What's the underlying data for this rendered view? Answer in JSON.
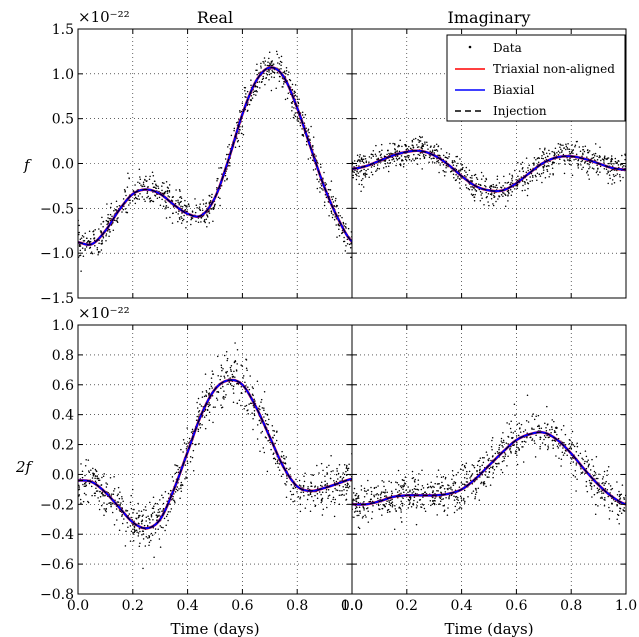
{
  "column_titles": [
    "Real",
    "Imaginary"
  ],
  "row_labels": [
    "f",
    "2f"
  ],
  "sci_notation": [
    "×10⁻²²",
    "×10⁻²²"
  ],
  "xlabel": "Time (days)",
  "legend": {
    "placement": "top-right of Imaginary (f) panel",
    "entries": [
      {
        "label": "Data",
        "style": "dots",
        "color": "#000000"
      },
      {
        "label": "Triaxial non-aligned",
        "style": "line",
        "color": "#ff0000"
      },
      {
        "label": "Biaxial",
        "style": "line",
        "color": "#0000ff"
      },
      {
        "label": "Injection",
        "style": "dashed",
        "color": "#000000"
      }
    ]
  },
  "chart_data": [
    {
      "type": "line",
      "panel": "f-real",
      "xlim": [
        0,
        1
      ],
      "ylim": [
        -1.5,
        1.5
      ],
      "xticks": [
        "0.0",
        "0.2",
        "0.4",
        "0.6",
        "0.8",
        "1.0"
      ],
      "yticks": [
        "−1.5",
        "−1.0",
        "−0.5",
        "0.0",
        "0.5",
        "1.0",
        "1.5"
      ],
      "grid": true,
      "x": [
        0.0,
        0.05,
        0.1,
        0.15,
        0.2,
        0.25,
        0.3,
        0.35,
        0.4,
        0.45,
        0.5,
        0.55,
        0.6,
        0.65,
        0.7,
        0.75,
        0.8,
        0.85,
        0.9,
        0.95,
        1.0
      ],
      "y": [
        -0.88,
        -0.9,
        -0.75,
        -0.52,
        -0.34,
        -0.29,
        -0.34,
        -0.46,
        -0.56,
        -0.58,
        -0.38,
        0.05,
        0.55,
        0.92,
        1.07,
        0.97,
        0.62,
        0.17,
        -0.27,
        -0.62,
        -0.87
      ],
      "noise": 0.09
    },
    {
      "type": "line",
      "panel": "f-imag",
      "xlim": [
        0,
        1
      ],
      "ylim": [
        -1.5,
        1.5
      ],
      "xticks": [
        "0.0",
        "0.2",
        "0.4",
        "0.6",
        "0.8",
        "1.0"
      ],
      "yticks": [],
      "grid": true,
      "x": [
        0.0,
        0.05,
        0.1,
        0.15,
        0.2,
        0.25,
        0.3,
        0.35,
        0.4,
        0.45,
        0.5,
        0.55,
        0.6,
        0.65,
        0.7,
        0.75,
        0.8,
        0.85,
        0.9,
        0.95,
        1.0
      ],
      "y": [
        -0.06,
        -0.03,
        0.03,
        0.09,
        0.13,
        0.14,
        0.09,
        -0.01,
        -0.14,
        -0.25,
        -0.3,
        -0.3,
        -0.22,
        -0.1,
        0.01,
        0.07,
        0.08,
        0.05,
        0.0,
        -0.05,
        -0.07
      ],
      "noise": 0.08
    },
    {
      "type": "line",
      "panel": "2f-real",
      "xlim": [
        0,
        1
      ],
      "ylim": [
        -0.8,
        1.0
      ],
      "xticks": [
        "0.0",
        "0.2",
        "0.4",
        "0.6",
        "0.8",
        "1.0"
      ],
      "yticks": [
        "−0.8",
        "−0.6",
        "−0.4",
        "−0.2",
        "0.0",
        "0.2",
        "0.4",
        "0.6",
        "0.8",
        "1.0"
      ],
      "grid": true,
      "x": [
        0.0,
        0.05,
        0.1,
        0.15,
        0.2,
        0.25,
        0.3,
        0.35,
        0.4,
        0.45,
        0.5,
        0.55,
        0.6,
        0.65,
        0.7,
        0.75,
        0.8,
        0.85,
        0.9,
        0.95,
        1.0
      ],
      "y": [
        -0.04,
        -0.05,
        -0.12,
        -0.22,
        -0.32,
        -0.36,
        -0.3,
        -0.1,
        0.15,
        0.4,
        0.57,
        0.63,
        0.6,
        0.45,
        0.25,
        0.05,
        -0.08,
        -0.11,
        -0.09,
        -0.06,
        -0.03
      ],
      "noise": 0.08
    },
    {
      "type": "line",
      "panel": "2f-imag",
      "xlim": [
        0,
        1
      ],
      "ylim": [
        -0.8,
        1.0
      ],
      "xticks": [
        "0.0",
        "0.2",
        "0.4",
        "0.6",
        "0.8",
        "1.0"
      ],
      "yticks": [],
      "grid": true,
      "x": [
        0.0,
        0.05,
        0.1,
        0.15,
        0.2,
        0.25,
        0.3,
        0.35,
        0.4,
        0.45,
        0.5,
        0.55,
        0.6,
        0.65,
        0.7,
        0.75,
        0.8,
        0.85,
        0.9,
        0.95,
        1.0
      ],
      "y": [
        -0.2,
        -0.2,
        -0.18,
        -0.15,
        -0.14,
        -0.14,
        -0.14,
        -0.13,
        -0.1,
        -0.03,
        0.06,
        0.15,
        0.23,
        0.27,
        0.28,
        0.23,
        0.14,
        0.03,
        -0.07,
        -0.15,
        -0.2
      ],
      "noise": 0.07
    }
  ]
}
